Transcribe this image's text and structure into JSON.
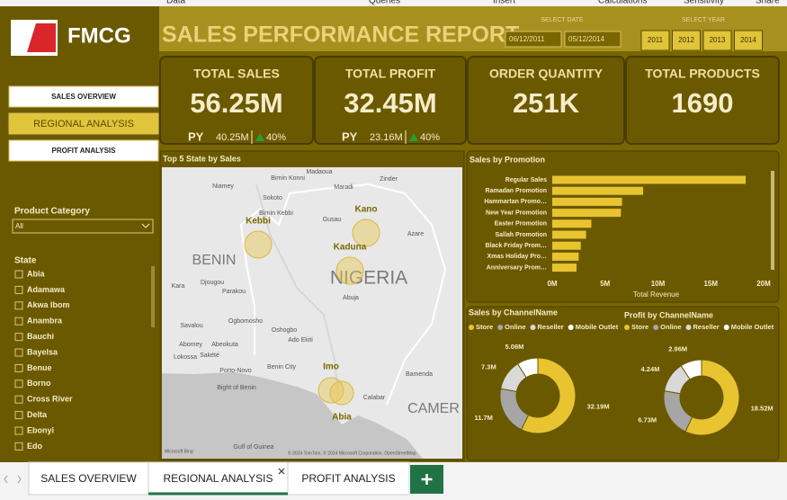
{
  "ribbon": [
    "Data",
    "Queries",
    "Insert",
    "Calculations",
    "Sensitivity",
    "Share"
  ],
  "brand": {
    "name": "FMCG"
  },
  "nav": [
    "SALES OVERVIEW",
    "REGIONAL ANALYSIS",
    "PROFIT ANALYSIS"
  ],
  "header": {
    "title": "SALES PERFORMANCE REPORT",
    "date_label": "SELECT DATE",
    "dates": [
      "06/12/2011",
      "05/12/2014"
    ],
    "year_label": "SELECT YEAR",
    "years": [
      "2011",
      "2012",
      "2013",
      "2014"
    ]
  },
  "kpis": [
    {
      "label": "TOTAL SALES",
      "value": "56.25M",
      "py_label": "PY",
      "py_value": "40.25M",
      "change": "40%"
    },
    {
      "label": "TOTAL PROFIT",
      "value": "32.45M",
      "py_label": "PY",
      "py_value": "23.16M",
      "change": "40%"
    },
    {
      "label": "ORDER QUANTITY",
      "value": "251K"
    },
    {
      "label": "TOTAL PRODUCTS",
      "value": "1690"
    }
  ],
  "filters": {
    "product_category": {
      "label": "Product Category",
      "selected": "All"
    },
    "state": {
      "label": "State",
      "options": [
        "Abia",
        "Adamawa",
        "Akwa Ibom",
        "Anambra",
        "Bauchi",
        "Bayelsa",
        "Benue",
        "Borno",
        "Cross River",
        "Delta",
        "Ebonyi",
        "Edo"
      ]
    }
  },
  "map": {
    "title": "Top 5 State by Sales",
    "bubbles": [
      "Kebbi",
      "Kano",
      "Kaduna",
      "Imo",
      "Abia"
    ],
    "places": [
      "Niamey",
      "Birnin Konni",
      "Madaoua",
      "Maradi",
      "Zinder",
      "Sokoto",
      "Birnin Kebbi",
      "Gusau",
      "Azare",
      "BENIN",
      "NIGERIA",
      "Djougou",
      "Kara",
      "Parakou",
      "Abuja",
      "Savalou",
      "Ogbomosho",
      "Oshogbo",
      "Ado Ekiti",
      "Abomey",
      "Abeokuta",
      "Lokossa",
      "Sakété",
      "Porto-Novo",
      "Benin City",
      "Bight of Benin",
      "Calabar",
      "Bamenda",
      "CAMER",
      "Gulf of Guinea"
    ],
    "logo": "Microsoft Bing",
    "credit": "© 2024 TomTom, © 2024 Microsoft Corporation, OpenStreetMap"
  },
  "chart_data": [
    {
      "type": "bar",
      "title": "Sales by Promotion",
      "categories": [
        "Regular Sales",
        "Ramadan Promotion",
        "Hammartan Promo…",
        "New Year Promotion",
        "Easter Promotion",
        "Sallah Promotion",
        "Black Friday Prom…",
        "Xmas Holiday Pro…",
        "Anniversary Prom…"
      ],
      "values": [
        18300000,
        8600000,
        6600000,
        6500000,
        3700000,
        3200000,
        2700000,
        2500000,
        2300000
      ],
      "color": "#e8c430",
      "xlabel": "Total Revenue",
      "xlim": [
        0,
        20000000
      ],
      "xticks": [
        {
          "value": 0,
          "label": "0M"
        },
        {
          "value": 5000000,
          "label": "5M"
        },
        {
          "value": 10000000,
          "label": "10M"
        },
        {
          "value": 15000000,
          "label": "15M"
        },
        {
          "value": 20000000,
          "label": "20M"
        }
      ]
    },
    {
      "type": "donut",
      "title": "Sales by ChannelName",
      "categories": [
        "Store",
        "Online",
        "Reseller",
        "Mobile Outlet"
      ],
      "values": [
        32190000,
        11700000,
        7300000,
        5060000
      ],
      "value_labels": [
        "32.19M",
        "11.7M",
        "7.3M",
        "5.06M"
      ],
      "colors": [
        "#e8c430",
        "#a6a6a6",
        "#d9d9d9",
        "#ffffff"
      ]
    },
    {
      "type": "donut",
      "title": "Profit by ChannelName",
      "categories": [
        "Store",
        "Online",
        "Reseller",
        "Mobile Outlet"
      ],
      "values": [
        18520000,
        6730000,
        4240000,
        2960000
      ],
      "value_labels": [
        "18.52M",
        "6.73M",
        "4.24M",
        "2.96M"
      ],
      "colors": [
        "#e8c430",
        "#a6a6a6",
        "#d9d9d9",
        "#ffffff"
      ]
    }
  ],
  "tabs": [
    "SALES OVERVIEW",
    "REGIONAL ANALYSIS",
    "PROFIT ANALYSIS"
  ]
}
